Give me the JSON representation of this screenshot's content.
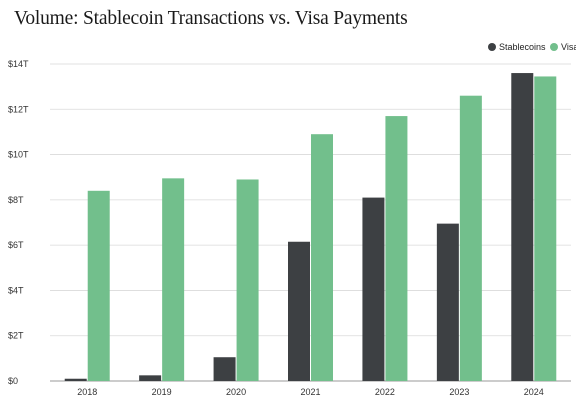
{
  "chart_data": {
    "type": "bar",
    "title": "Volume: Stablecoin Transactions vs. Visa Payments",
    "xlabel": "",
    "ylabel": "",
    "categories": [
      "2018",
      "2019",
      "2020",
      "2021",
      "2022",
      "2023",
      "2024"
    ],
    "series": [
      {
        "name": "Stablecoins",
        "color": "#3d4043",
        "values": [
          0.1,
          0.25,
          1.05,
          6.15,
          8.1,
          6.95,
          13.6
        ]
      },
      {
        "name": "Visa",
        "color": "#72bf8c",
        "values": [
          8.4,
          8.95,
          8.9,
          10.9,
          11.7,
          12.6,
          13.45
        ]
      }
    ],
    "ylim": [
      0,
      14
    ],
    "yticks": [
      0,
      2,
      4,
      6,
      8,
      10,
      12,
      14
    ],
    "ytick_labels": [
      "$0",
      "$2T",
      "$4T",
      "$6T",
      "$8T",
      "$10T",
      "$12T",
      "$14T"
    ],
    "grid": true,
    "legend_position": "top-right"
  }
}
